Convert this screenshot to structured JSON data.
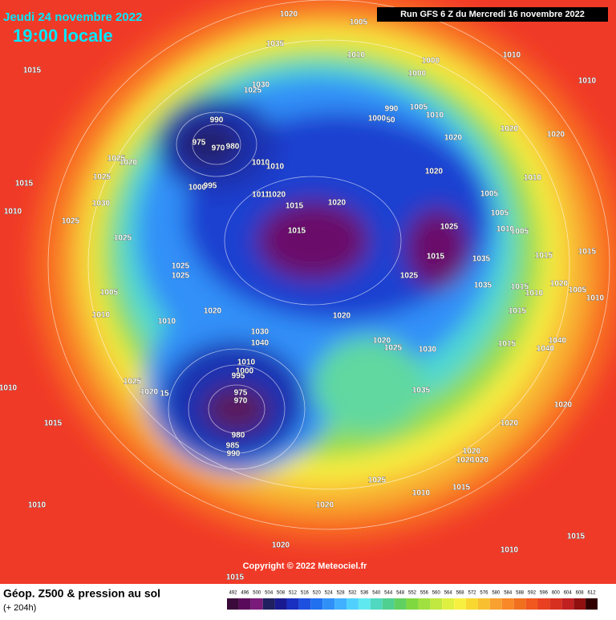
{
  "header": {
    "date": "Jeudi 24 novembre 2022",
    "time": "19:00 locale",
    "run": "Run GFS 6 Z du Mercredi 16 novembre 2022"
  },
  "copyright": "Copyright © 2022 Meteociel.fr",
  "footer": {
    "title": "Géop. Z500 & pression au sol",
    "lead": "(+ 204h)"
  },
  "scale": {
    "values": [
      492,
      496,
      500,
      504,
      508,
      512,
      516,
      520,
      524,
      528,
      532,
      536,
      540,
      544,
      548,
      552,
      556,
      560,
      564,
      568,
      572,
      576,
      580,
      584,
      588,
      592,
      596,
      600,
      604,
      608,
      612
    ],
    "colors": [
      "#3a0a3a",
      "#5a0a5a",
      "#7a1a7a",
      "#202060",
      "#1a1a90",
      "#1a30c0",
      "#1e50e0",
      "#2070f0",
      "#3090f8",
      "#40b0ff",
      "#50d0ff",
      "#60e8f0",
      "#50d8c0",
      "#50d090",
      "#60d060",
      "#80d840",
      "#a0e040",
      "#c0e840",
      "#e0f040",
      "#f8f040",
      "#f8d830",
      "#f8c030",
      "#f8a030",
      "#f88828",
      "#f07020",
      "#f05820",
      "#e84020",
      "#d83020",
      "#c02020",
      "#901010",
      "#300000"
    ]
  },
  "isobar_labels": [
    1020,
    1005,
    1035,
    1010,
    1000,
    1010,
    1015,
    1000,
    1010,
    1030,
    1025,
    990,
    1005,
    1010,
    990,
    1000,
    50,
    975,
    970,
    980,
    1020,
    1020,
    1020,
    1025,
    1020,
    1010,
    1010,
    1025,
    1020,
    1010,
    1015,
    1000,
    995,
    1011,
    1020,
    1020,
    1015,
    1005,
    1030,
    1010,
    1005,
    1025,
    1015,
    1025,
    1010,
    1005,
    1025,
    1015,
    1015,
    1015,
    1035,
    1025,
    1025,
    1025,
    1035,
    1020,
    1015,
    1010,
    1005,
    1010,
    1005,
    1010,
    1020,
    1020,
    1015,
    1010,
    1030,
    1040,
    1020,
    1025,
    1030,
    1015,
    1040,
    1040,
    1010,
    1000,
    995,
    1025,
    1035,
    1020,
    15,
    975,
    970,
    1010,
    1015,
    1020,
    1020,
    980,
    985,
    990,
    1020,
    1020,
    1020,
    1025,
    1015,
    1010,
    1010,
    1020,
    1015,
    1020,
    1010,
    1015
  ]
}
